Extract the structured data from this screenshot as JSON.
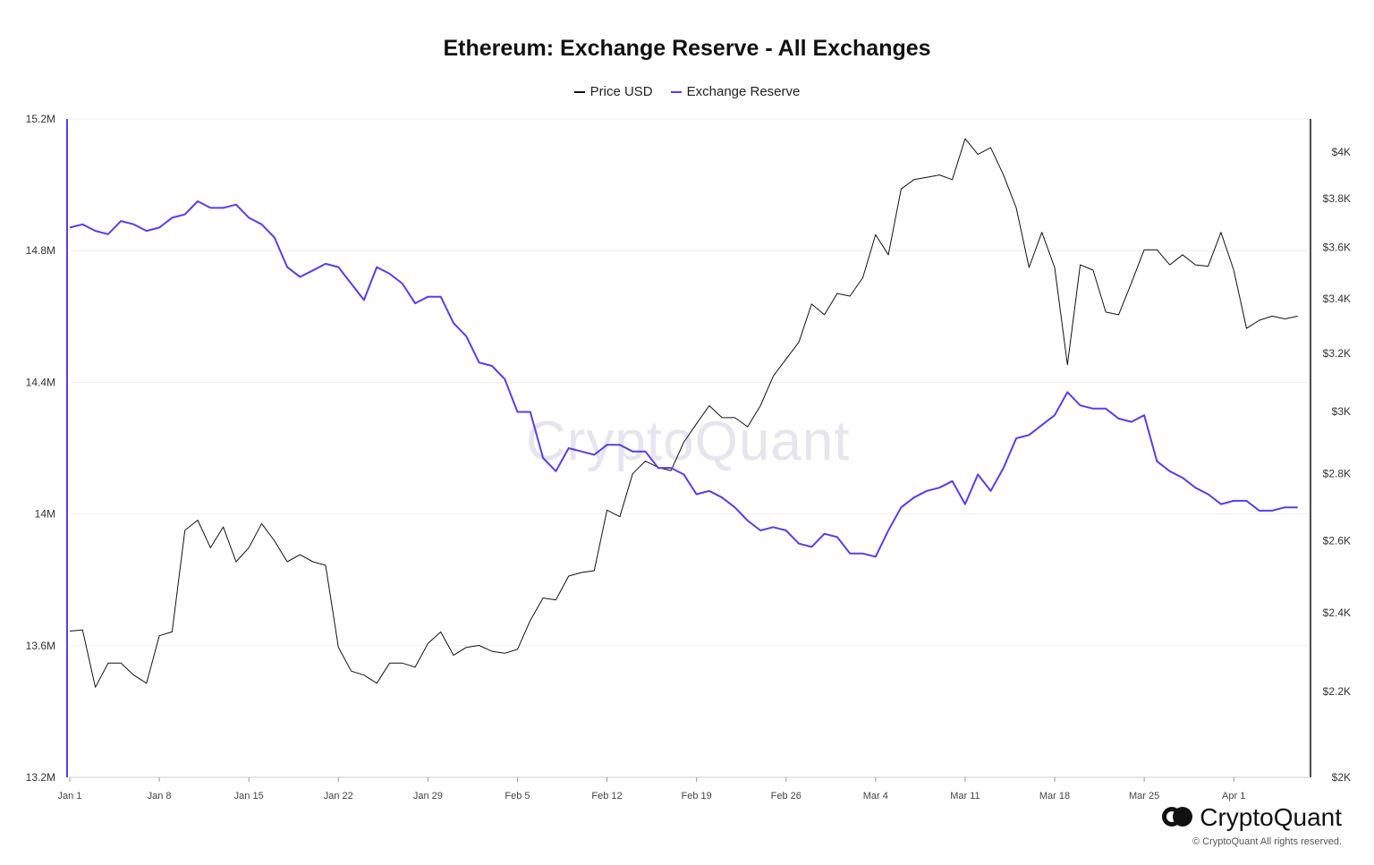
{
  "chart_data": {
    "type": "line",
    "title": "Ethereum: Exchange Reserve - All Exchanges",
    "legend_position": "top-center",
    "grid": true,
    "x_ticks": [
      "Jan 1",
      "Jan 8",
      "Jan 15",
      "Jan 22",
      "Jan 29",
      "Feb 5",
      "Feb 12",
      "Feb 19",
      "Feb 26",
      "Mar 4",
      "Mar 11",
      "Mar 18",
      "Mar 25",
      "Apr 1"
    ],
    "x_range_days": [
      0,
      97
    ],
    "y_left": {
      "ticks": [
        "13.2M",
        "13.6M",
        "14M",
        "14.4M",
        "14.8M",
        "15.2M"
      ],
      "tick_values": [
        13.2,
        13.6,
        14.0,
        14.4,
        14.8,
        15.2
      ],
      "range": [
        13.2,
        15.2
      ],
      "unit": "M"
    },
    "y_right": {
      "ticks": [
        "$2K",
        "$2.2K",
        "$2.4K",
        "$2.6K",
        "$2.8K",
        "$3K",
        "$3.2K",
        "$3.4K",
        "$3.6K",
        "$3.8K",
        "$4K"
      ],
      "tick_values": [
        2000,
        2200,
        2400,
        2600,
        2800,
        3000,
        3200,
        3400,
        3600,
        3800,
        4000
      ],
      "range": [
        2000,
        4150
      ],
      "scale": "log"
    },
    "series": [
      {
        "name": "Price USD",
        "axis": "right",
        "color": "#111111",
        "values": [
          2352,
          2355,
          2210,
          2270,
          2270,
          2240,
          2220,
          2340,
          2350,
          2630,
          2660,
          2580,
          2640,
          2540,
          2580,
          2650,
          2600,
          2540,
          2560,
          2540,
          2530,
          2310,
          2250,
          2240,
          2220,
          2270,
          2270,
          2260,
          2320,
          2350,
          2290,
          2310,
          2315,
          2300,
          2295,
          2305,
          2380,
          2440,
          2435,
          2500,
          2510,
          2515,
          2690,
          2670,
          2800,
          2840,
          2820,
          2810,
          2900,
          2960,
          3020,
          2980,
          2980,
          2950,
          3020,
          3120,
          3180,
          3240,
          3380,
          3340,
          3420,
          3410,
          3480,
          3650,
          3570,
          3840,
          3880,
          3890,
          3900,
          3880,
          4060,
          3990,
          4020,
          3900,
          3760,
          3520,
          3660,
          3520,
          3160,
          3530,
          3510,
          3350,
          3340,
          3460,
          3590,
          3590,
          3530,
          3570,
          3530,
          3525,
          3660,
          3510,
          3290,
          3320,
          3335,
          3325,
          3335
        ]
      },
      {
        "name": "Exchange Reserve",
        "axis": "left",
        "color": "#5b3ce6",
        "values": [
          14.87,
          14.88,
          14.86,
          14.85,
          14.89,
          14.88,
          14.86,
          14.87,
          14.9,
          14.91,
          14.95,
          14.93,
          14.93,
          14.94,
          14.9,
          14.88,
          14.84,
          14.75,
          14.72,
          14.74,
          14.76,
          14.75,
          14.7,
          14.65,
          14.75,
          14.73,
          14.7,
          14.64,
          14.66,
          14.66,
          14.58,
          14.54,
          14.46,
          14.45,
          14.41,
          14.31,
          14.31,
          14.17,
          14.13,
          14.2,
          14.19,
          14.18,
          14.21,
          14.21,
          14.19,
          14.19,
          14.14,
          14.14,
          14.12,
          14.06,
          14.07,
          14.05,
          14.02,
          13.98,
          13.95,
          13.96,
          13.95,
          13.91,
          13.9,
          13.94,
          13.93,
          13.88,
          13.88,
          13.87,
          13.95,
          14.02,
          14.05,
          14.07,
          14.08,
          14.1,
          14.03,
          14.12,
          14.07,
          14.14,
          14.23,
          14.24,
          14.27,
          14.3,
          14.37,
          14.33,
          14.32,
          14.32,
          14.29,
          14.28,
          14.3,
          14.16,
          14.13,
          14.11,
          14.08,
          14.06,
          14.03,
          14.04,
          14.04,
          14.01,
          14.01,
          14.02,
          14.02
        ]
      }
    ]
  },
  "watermark": "CryptoQuant",
  "brand": {
    "name": "CryptoQuant",
    "copyright": "© CryptoQuant All rights reserved.",
    "logo_icon": "cryptoquant-logo-icon"
  }
}
